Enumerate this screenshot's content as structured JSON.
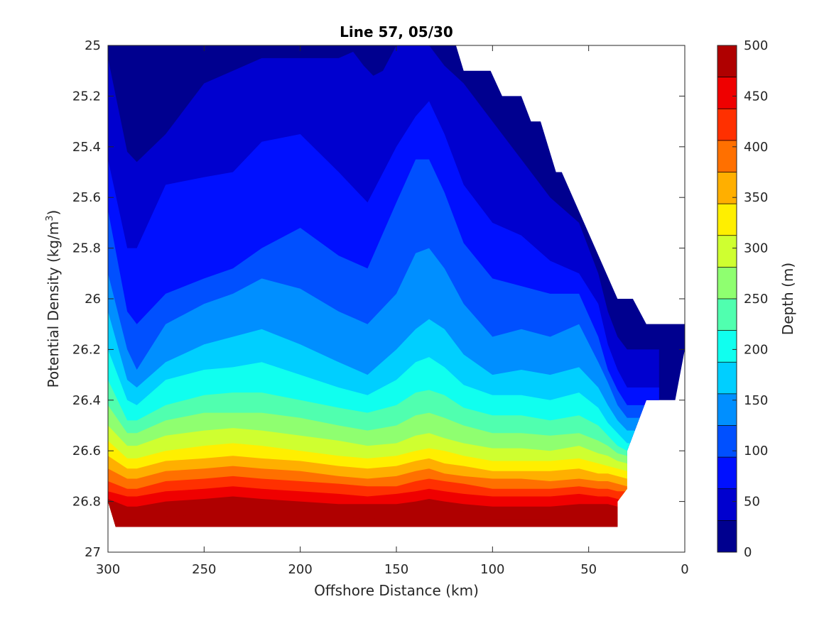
{
  "chart_data": {
    "type": "contourf",
    "title": "Line 57, 05/30",
    "xlabel": "Offshore Distance (km)",
    "ylabel_main": "Potential Density (kg/m",
    "ylabel_sup": "3",
    "ylabel_end": ")",
    "xlim": [
      300,
      0
    ],
    "ylim": [
      25,
      27
    ],
    "x_ticks": [
      300,
      250,
      200,
      150,
      100,
      50,
      0
    ],
    "y_ticks": [
      25,
      25.2,
      25.4,
      25.6,
      25.8,
      26,
      26.2,
      26.4,
      26.6,
      26.8,
      27
    ],
    "y_tick_labels": [
      "25",
      "25.2",
      "25.4",
      "25.6",
      "25.8",
      "26",
      "26.2",
      "26.4",
      "26.6",
      "26.8",
      "27"
    ],
    "colorbar": {
      "label": "Depth (m)",
      "range": [
        0,
        500
      ],
      "levels": [
        0,
        25,
        50,
        75,
        100,
        125,
        150,
        175,
        200,
        225,
        250,
        275,
        300,
        325,
        350,
        375,
        400,
        425,
        450,
        475,
        500
      ],
      "ticks": [
        0,
        50,
        100,
        150,
        200,
        250,
        300,
        350,
        400,
        450,
        500
      ],
      "colors": [
        "#00008f",
        "#0000cf",
        "#0010ff",
        "#0050ff",
        "#008fff",
        "#00cfff",
        "#10ffef",
        "#50ffaf",
        "#8fff70",
        "#cfff30",
        "#ffef00",
        "#ffaf00",
        "#ff7000",
        "#ff3000",
        "#ef0000",
        "#af0000"
      ],
      "colormap": "jet"
    },
    "outer_boundary": [
      [
        300,
        25.0
      ],
      [
        119,
        25.0
      ],
      [
        115,
        25.1
      ],
      [
        101,
        25.1
      ],
      [
        95,
        25.2
      ],
      [
        85,
        25.2
      ],
      [
        80,
        25.3
      ],
      [
        75,
        25.3
      ],
      [
        67,
        25.5
      ],
      [
        64,
        25.5
      ],
      [
        35,
        26.0
      ],
      [
        27,
        26.0
      ],
      [
        20,
        26.1
      ],
      [
        0,
        26.1
      ],
      [
        0,
        26.2
      ],
      [
        5,
        26.4
      ],
      [
        20,
        26.4
      ],
      [
        30,
        26.6
      ],
      [
        30,
        26.75
      ],
      [
        35,
        26.8
      ],
      [
        35,
        26.9
      ],
      [
        296,
        26.9
      ],
      [
        300,
        26.8
      ]
    ],
    "x_samples": [
      300,
      290,
      285,
      270,
      250,
      235,
      220,
      200,
      180,
      165,
      150,
      140,
      133,
      125,
      115,
      100,
      85,
      70,
      55,
      45,
      40,
      35,
      30
    ],
    "contour_depths": [
      {
        "depth": 25,
        "y": [
          25.05,
          25.42,
          25.46,
          25.35,
          25.15,
          25.1,
          25.05,
          25.05,
          25.05,
          25.0,
          25.0,
          25.0,
          25.0,
          25.08,
          25.15,
          25.3,
          25.45,
          25.6,
          25.7,
          25.9,
          26.05,
          26.15,
          26.2
        ]
      },
      {
        "depth": 50,
        "y": [
          25.45,
          25.8,
          25.8,
          25.55,
          25.52,
          25.5,
          25.38,
          25.35,
          25.5,
          25.62,
          25.4,
          25.28,
          25.22,
          25.35,
          25.55,
          25.7,
          25.75,
          25.85,
          25.9,
          26.02,
          26.18,
          26.28,
          26.35
        ]
      },
      {
        "depth": 75,
        "y": [
          25.65,
          26.05,
          26.1,
          25.98,
          25.92,
          25.88,
          25.8,
          25.72,
          25.83,
          25.88,
          25.62,
          25.45,
          25.45,
          25.58,
          25.78,
          25.92,
          25.95,
          25.98,
          25.98,
          26.15,
          26.28,
          26.36,
          26.42
        ]
      },
      {
        "depth": 100,
        "y": [
          25.9,
          26.2,
          26.28,
          26.1,
          26.02,
          25.98,
          25.92,
          25.96,
          26.05,
          26.1,
          25.98,
          25.82,
          25.8,
          25.88,
          26.02,
          26.15,
          26.12,
          26.15,
          26.1,
          26.25,
          26.33,
          26.42,
          26.47
        ]
      },
      {
        "depth": 125,
        "y": [
          26.05,
          26.32,
          26.35,
          26.25,
          26.18,
          26.15,
          26.12,
          26.18,
          26.25,
          26.3,
          26.2,
          26.12,
          26.08,
          26.12,
          26.22,
          26.3,
          26.28,
          26.3,
          26.27,
          26.35,
          26.42,
          26.48,
          26.52
        ]
      },
      {
        "depth": 150,
        "y": [
          26.2,
          26.4,
          26.42,
          26.32,
          26.28,
          26.27,
          26.25,
          26.3,
          26.35,
          26.38,
          26.32,
          26.25,
          26.23,
          26.27,
          26.34,
          26.38,
          26.38,
          26.4,
          26.37,
          26.43,
          26.49,
          26.53,
          26.57
        ]
      },
      {
        "depth": 175,
        "y": [
          26.32,
          26.48,
          26.48,
          26.42,
          26.38,
          26.37,
          26.37,
          26.4,
          26.43,
          26.45,
          26.42,
          26.37,
          26.36,
          26.38,
          26.43,
          26.46,
          26.46,
          26.48,
          26.46,
          26.5,
          26.54,
          26.58,
          26.6
        ]
      },
      {
        "depth": 200,
        "y": [
          26.42,
          26.53,
          26.53,
          26.48,
          26.45,
          26.45,
          26.45,
          26.47,
          26.5,
          26.52,
          26.5,
          26.46,
          26.45,
          26.47,
          26.5,
          26.53,
          26.53,
          26.54,
          26.53,
          26.56,
          26.58,
          26.61,
          26.62
        ]
      },
      {
        "depth": 225,
        "y": [
          26.5,
          26.58,
          26.58,
          26.54,
          26.52,
          26.51,
          26.52,
          26.54,
          26.56,
          26.58,
          26.57,
          26.54,
          26.53,
          26.55,
          26.57,
          26.59,
          26.59,
          26.6,
          26.58,
          26.61,
          26.62,
          26.64,
          26.65
        ]
      },
      {
        "depth": 250,
        "y": [
          26.56,
          26.63,
          26.63,
          26.6,
          26.58,
          26.57,
          26.58,
          26.6,
          26.62,
          26.63,
          26.62,
          26.6,
          26.59,
          26.6,
          26.62,
          26.64,
          26.64,
          26.64,
          26.63,
          26.65,
          26.66,
          26.67,
          26.68
        ]
      },
      {
        "depth": 275,
        "y": [
          26.62,
          26.67,
          26.67,
          26.64,
          26.63,
          26.62,
          26.63,
          26.64,
          26.66,
          26.67,
          26.66,
          26.64,
          26.63,
          26.65,
          26.66,
          26.68,
          26.68,
          26.68,
          26.67,
          26.69,
          26.69,
          26.7,
          26.71
        ]
      },
      {
        "depth": 300,
        "y": [
          26.67,
          26.71,
          26.71,
          26.68,
          26.67,
          26.66,
          26.67,
          26.68,
          26.7,
          26.71,
          26.7,
          26.68,
          26.67,
          26.69,
          26.7,
          26.71,
          26.71,
          26.72,
          26.71,
          26.72,
          26.72,
          26.73,
          26.74
        ]
      },
      {
        "depth": 325,
        "y": [
          26.72,
          26.75,
          26.75,
          26.72,
          26.71,
          26.7,
          26.71,
          26.72,
          26.73,
          26.74,
          26.74,
          26.72,
          26.71,
          26.72,
          26.73,
          26.75,
          26.75,
          26.75,
          26.74,
          26.75,
          26.75,
          26.76,
          26.76
        ]
      },
      {
        "depth": 350,
        "y": [
          26.76,
          26.78,
          26.78,
          26.76,
          26.75,
          26.74,
          26.75,
          26.76,
          26.77,
          26.78,
          26.77,
          26.76,
          26.75,
          26.76,
          26.77,
          26.78,
          26.78,
          26.78,
          26.77,
          26.78,
          26.78,
          26.79,
          26.8
        ]
      },
      {
        "depth": 375,
        "y": [
          26.79,
          26.82,
          26.82,
          26.8,
          26.79,
          26.78,
          26.79,
          26.8,
          26.81,
          26.81,
          26.81,
          26.8,
          26.79,
          26.8,
          26.81,
          26.82,
          26.82,
          26.82,
          26.81,
          26.81,
          26.81,
          26.82,
          26.83
        ]
      },
      {
        "depth": 400,
        "y": [
          26.82,
          26.85,
          26.85,
          26.83,
          26.82,
          26.82,
          26.82,
          26.83,
          26.84,
          26.84,
          26.84,
          26.83,
          26.83,
          26.83,
          26.84,
          26.85,
          26.85,
          26.85,
          26.84,
          26.84,
          26.84,
          26.85,
          26.86
        ]
      },
      {
        "depth": 425,
        "y": [
          26.85,
          26.87,
          26.87,
          26.86,
          26.85,
          26.85,
          26.85,
          26.86,
          26.86,
          26.87,
          26.86,
          26.86,
          26.85,
          26.86,
          26.86,
          26.87,
          26.87,
          26.87,
          26.86,
          26.86,
          26.86,
          26.87,
          26.88
        ]
      },
      {
        "depth": 450,
        "y": [
          26.88,
          26.89,
          26.89,
          26.88,
          26.88,
          26.88,
          26.88,
          26.89,
          26.89,
          26.89,
          26.89,
          26.89,
          26.88,
          26.89,
          26.89,
          26.89,
          26.89,
          26.89,
          26.89,
          26.89,
          26.89,
          26.9,
          26.9
        ]
      }
    ],
    "deep_patches": [
      {
        "depth": 25,
        "points": [
          [
            175,
            25.0
          ],
          [
            150,
            25.0
          ],
          [
            157,
            25.1
          ],
          [
            162,
            25.12
          ],
          [
            167,
            25.08
          ]
        ]
      },
      {
        "depth": 25,
        "points": [
          [
            20,
            26.1
          ],
          [
            0,
            26.1
          ],
          [
            0,
            26.2
          ],
          [
            4,
            26.27
          ],
          [
            8,
            26.21
          ],
          [
            14,
            26.15
          ]
        ]
      }
    ]
  }
}
